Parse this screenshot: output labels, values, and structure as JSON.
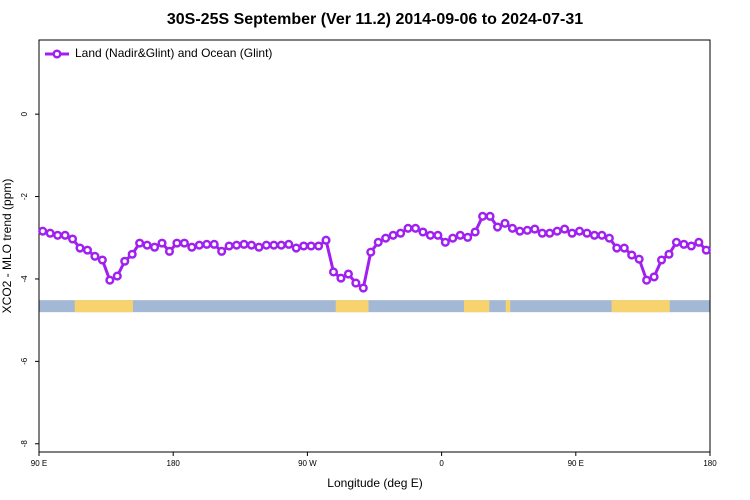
{
  "chart_data": {
    "type": "line",
    "title": "30S-25S September (Ver 11.2)   2014-09-06 to 2024-07-31",
    "x_label": "Longitude (deg E)",
    "y_label": "XCO2 - MLO trend (ppm)",
    "x": [
      92.5,
      97.5,
      102.5,
      107.5,
      112.5,
      117.5,
      122.5,
      127.5,
      132.5,
      137.5,
      142.5,
      147.5,
      152.5,
      157.5,
      162.5,
      167.5,
      172.5,
      177.5,
      182.5,
      187.5,
      192.5,
      197.5,
      202.5,
      207.5,
      212.5,
      217.5,
      222.5,
      227.5,
      232.5,
      237.5,
      242.5,
      247.5,
      252.5,
      257.5,
      262.5,
      267.5,
      272.5,
      277.5,
      282.5,
      287.5,
      292.5,
      297.5,
      302.5,
      307.5,
      312.5,
      317.5,
      322.5,
      327.5,
      332.5,
      337.5,
      342.5,
      347.5,
      352.5,
      357.5,
      362.5,
      367.5,
      372.5,
      377.5,
      382.5,
      387.5,
      392.5,
      397.5,
      402.5,
      407.5,
      412.5,
      417.5,
      422.5,
      427.5,
      432.5,
      437.5,
      442.5,
      447.5,
      452.5,
      457.5,
      462.5,
      467.5,
      472.5,
      477.5,
      482.5,
      487.5,
      492.5,
      497.5,
      502.5,
      507.5,
      512.5,
      517.5,
      522.5,
      527.5,
      532.5,
      537.5
    ],
    "series": [
      {
        "name": "Land (Nadir&Glint) and Ocean (Glint)",
        "color": "#a020f0",
        "values": [
          -2.84,
          -2.89,
          -2.94,
          -2.94,
          -3.03,
          -3.25,
          -3.3,
          -3.45,
          -3.54,
          -4.03,
          -3.93,
          -3.57,
          -3.4,
          -3.13,
          -3.18,
          -3.23,
          -3.13,
          -3.33,
          -3.13,
          -3.13,
          -3.23,
          -3.18,
          -3.16,
          -3.16,
          -3.33,
          -3.2,
          -3.18,
          -3.16,
          -3.18,
          -3.23,
          -3.18,
          -3.18,
          -3.18,
          -3.16,
          -3.25,
          -3.2,
          -3.2,
          -3.2,
          -3.06,
          -3.83,
          -3.98,
          -3.88,
          -4.1,
          -4.22,
          -3.35,
          -3.11,
          -3.01,
          -2.94,
          -2.89,
          -2.77,
          -2.77,
          -2.86,
          -2.94,
          -2.94,
          -3.11,
          -3.01,
          -2.94,
          -2.99,
          -2.86,
          -2.48,
          -2.48,
          -2.74,
          -2.65,
          -2.77,
          -2.84,
          -2.82,
          -2.79,
          -2.89,
          -2.89,
          -2.84,
          -2.79,
          -2.89,
          -2.84,
          -2.89,
          -2.94,
          -2.94,
          -3.01,
          -3.25,
          -3.25,
          -3.42,
          -3.52,
          -4.03,
          -3.95,
          -3.54,
          -3.4,
          -3.11,
          -3.16,
          -3.2,
          -3.11,
          -3.3
        ]
      }
    ],
    "surface_strip": {
      "y": -4.66,
      "ocean_color": "#a3b8d4",
      "land_color": "#f7d36e",
      "land": [
        [
          114,
          153
        ],
        [
          289,
          311
        ],
        [
          375,
          392
        ],
        [
          403,
          406
        ],
        [
          474,
          513
        ]
      ]
    },
    "xlim": [
      90,
      540
    ],
    "xticks": [
      {
        "value": 90,
        "label": "90 E"
      },
      180,
      {
        "value": 270,
        "label": "90 W"
      },
      {
        "value": 360,
        "label": "0"
      },
      {
        "value": 450,
        "label": "90 E"
      },
      {
        "value": 540,
        "label": "180"
      }
    ],
    "ylim": [
      -8.2,
      1.8
    ],
    "yticks": [
      -8,
      -6,
      -4,
      -2,
      0
    ],
    "legend": "top-left"
  }
}
